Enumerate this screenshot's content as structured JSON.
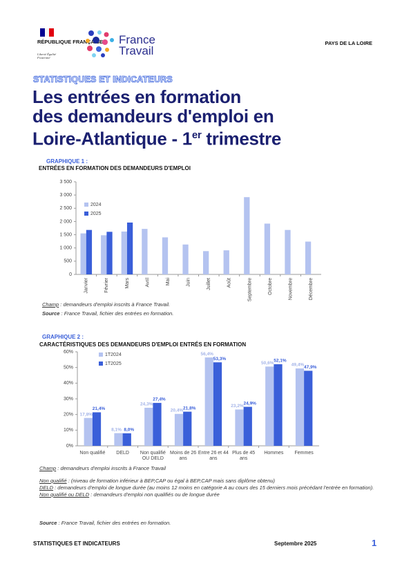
{
  "header": {
    "republic": "RÉPUBLIQUE FRANÇAISE",
    "motto": "Liberté Égalité Fraternité",
    "brand": "France Travail",
    "region": "PAYS DE LA LOIRE",
    "kicker": "STATISTIQUES ET INDICATEURS"
  },
  "title": {
    "line1": "Les entrées en formation",
    "line2": "des demandeurs d'emploi en",
    "line3": "Loire-Atlantique - 1",
    "sup": "er",
    "line3_end": " trimestre"
  },
  "chart_data": [
    {
      "type": "bar",
      "title": "GRAPHIQUE 1 :",
      "subtitle": "ENTRÉES EN FORMATION DES DEMANDEURS D'EMPLOI",
      "categories": [
        "Janvier",
        "Février",
        "Mars",
        "Avril",
        "Mai",
        "Juin",
        "Juillet",
        "Août",
        "Septembre",
        "Octobre",
        "Novembre",
        "Décembre"
      ],
      "series": [
        {
          "name": "2024",
          "color": "#b4c3f0",
          "values": [
            1550,
            1480,
            1620,
            1720,
            1400,
            1130,
            880,
            910,
            2920,
            1920,
            1680,
            1240
          ]
        },
        {
          "name": "2025",
          "color": "#3a5fd9",
          "values": [
            1680,
            1610,
            1960,
            null,
            null,
            null,
            null,
            null,
            null,
            null,
            null,
            null
          ]
        }
      ],
      "ylim": [
        0,
        3500
      ],
      "yticks": [
        0,
        500,
        {
          "value": 1000,
          "label": "1 000"
        },
        {
          "value": 1500,
          "label": "1 500"
        },
        {
          "value": 2000,
          "label": "2 000"
        },
        {
          "value": 2500,
          "label": "2 500"
        },
        {
          "value": 3000,
          "label": "3 000"
        },
        {
          "value": 3500,
          "label": "3 500"
        }
      ],
      "notes": [
        {
          "label": "Champ",
          "text": ": demandeurs d'emploi inscrits à France Travail."
        }
      ],
      "source": {
        "label": "Source",
        "text": ": France Travail, fichier des entrées en formation."
      }
    },
    {
      "type": "bar",
      "title": "GRAPHIQUE 2 :",
      "subtitle": "CARACTÉRISTIQUES DES DEMANDEURS D'EMPLOI ENTRÉS EN FORMATION",
      "categories": [
        "Non qualifié",
        "DELD",
        "Non qualifié OU DELD",
        "Moins de 26 ans",
        "Entre 26 et 44 ans",
        "Plus de 45 ans",
        "Hommes",
        "Femmes"
      ],
      "series": [
        {
          "name": "1T2024",
          "color": "#b4c3f0",
          "label_color": "#a4b4e8",
          "values": [
            17.8,
            8.1,
            24.3,
            20.4,
            56.4,
            23.2,
            50.6,
            49.4
          ],
          "value_labels": [
            "17,8%",
            "8,1%",
            "24,3%",
            "20,4%",
            "56,4%",
            "23,2%",
            "50,6%",
            "49,4%"
          ]
        },
        {
          "name": "1T2025",
          "color": "#3a5fd9",
          "label_color": "#3a5fd9",
          "values": [
            21.4,
            8.0,
            27.4,
            21.8,
            53.3,
            24.9,
            52.1,
            47.9
          ],
          "value_labels": [
            "21,4%",
            "8,0%",
            "27,4%",
            "21,8%",
            "53,3%",
            "24,9%",
            "52,1%",
            "47,9%"
          ]
        }
      ],
      "ylim": [
        0,
        60
      ],
      "yticks": [
        {
          "value": 0,
          "label": "0%"
        },
        {
          "value": 10,
          "label": "10%"
        },
        {
          "value": 20,
          "label": "20%"
        },
        {
          "value": 30,
          "label": "30%"
        },
        {
          "value": 40,
          "label": "40%"
        },
        {
          "value": 50,
          "label": "50%"
        },
        {
          "value": 60,
          "label": "60%"
        }
      ],
      "notes": [
        {
          "label": "Champ",
          "text": ": demandeurs d'emploi inscrits à France Travail"
        },
        {
          "label": "Non qualifié",
          "text": ": (niveau de formation inférieur à BEP,CAP ou égal à BEP,CAP mais sans diplôme obtenu)"
        },
        {
          "label": "DELD",
          "text": ": demandeurs d'emploi de longue durée (au moins 12 moins en catégorie A au cours des 15 derniers mois précédant l'entrée en formation)."
        },
        {
          "label": "Non qualifié ou DELD",
          "text": ": demandeurs d'emploi non qualifiés ou de longue durée"
        }
      ],
      "source": {
        "label": "Source",
        "text": ": France Travail, fichier des entrées en formation."
      }
    }
  ],
  "footer": {
    "left": "STATISTIQUES ET INDICATEURS",
    "date": "Septembre 2025",
    "page": "1"
  }
}
